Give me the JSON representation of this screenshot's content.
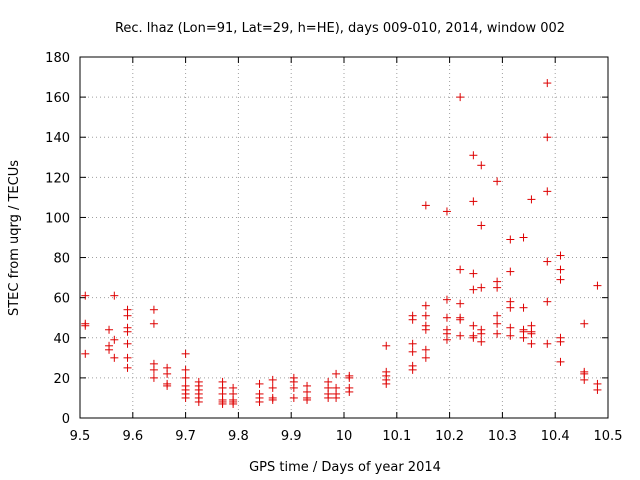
{
  "chart_data": {
    "type": "scatter",
    "title": "Rec. lhaz (Lon=91, Lat=29, h=HE), days 009-010, 2014, window 002",
    "xlabel": "GPS time / Days of year 2014",
    "ylabel": "STEC from uqrg / TECUs",
    "xlim": [
      9.5,
      10.5
    ],
    "ylim": [
      0,
      180
    ],
    "xticks": [
      "9.5",
      "9.6",
      "9.7",
      "9.8",
      "9.9",
      "10",
      "10.1",
      "10.2",
      "10.3",
      "10.4",
      "10.5"
    ],
    "yticks": [
      "0",
      "20",
      "40",
      "60",
      "80",
      "100",
      "120",
      "140",
      "160",
      "180"
    ],
    "grid": true,
    "marker": "+",
    "series": [
      {
        "color": "#dd0000",
        "points": [
          [
            9.51,
            61
          ],
          [
            9.51,
            47
          ],
          [
            9.51,
            46
          ],
          [
            9.51,
            32
          ],
          [
            9.555,
            44
          ],
          [
            9.555,
            36
          ],
          [
            9.555,
            34
          ],
          [
            9.565,
            61
          ],
          [
            9.565,
            39
          ],
          [
            9.565,
            30
          ],
          [
            9.59,
            54
          ],
          [
            9.59,
            51
          ],
          [
            9.59,
            45
          ],
          [
            9.59,
            43
          ],
          [
            9.59,
            37
          ],
          [
            9.59,
            30
          ],
          [
            9.59,
            25
          ],
          [
            9.64,
            54
          ],
          [
            9.64,
            47
          ],
          [
            9.64,
            27
          ],
          [
            9.64,
            24
          ],
          [
            9.64,
            20
          ],
          [
            9.665,
            25
          ],
          [
            9.665,
            22
          ],
          [
            9.665,
            17
          ],
          [
            9.665,
            16
          ],
          [
            9.7,
            32
          ],
          [
            9.7,
            24
          ],
          [
            9.7,
            20
          ],
          [
            9.7,
            16
          ],
          [
            9.7,
            14
          ],
          [
            9.7,
            12
          ],
          [
            9.7,
            10
          ],
          [
            9.725,
            18
          ],
          [
            9.725,
            16
          ],
          [
            9.725,
            14
          ],
          [
            9.725,
            12
          ],
          [
            9.725,
            10
          ],
          [
            9.725,
            8
          ],
          [
            9.77,
            18
          ],
          [
            9.77,
            15
          ],
          [
            9.77,
            12
          ],
          [
            9.77,
            9
          ],
          [
            9.77,
            8
          ],
          [
            9.77,
            7
          ],
          [
            9.79,
            15
          ],
          [
            9.79,
            12
          ],
          [
            9.79,
            9
          ],
          [
            9.79,
            8
          ],
          [
            9.79,
            7
          ],
          [
            9.84,
            17
          ],
          [
            9.84,
            12
          ],
          [
            9.84,
            10
          ],
          [
            9.84,
            8
          ],
          [
            9.865,
            19
          ],
          [
            9.865,
            15
          ],
          [
            9.865,
            10
          ],
          [
            9.865,
            9
          ],
          [
            9.905,
            20
          ],
          [
            9.905,
            18
          ],
          [
            9.905,
            15
          ],
          [
            9.905,
            10
          ],
          [
            9.93,
            16
          ],
          [
            9.93,
            13
          ],
          [
            9.93,
            10
          ],
          [
            9.93,
            9
          ],
          [
            9.97,
            18
          ],
          [
            9.97,
            15
          ],
          [
            9.97,
            12
          ],
          [
            9.97,
            10
          ],
          [
            9.985,
            22
          ],
          [
            9.985,
            15
          ],
          [
            9.985,
            12
          ],
          [
            9.985,
            10
          ],
          [
            10.01,
            21
          ],
          [
            10.01,
            20
          ],
          [
            10.01,
            15
          ],
          [
            10.01,
            13
          ],
          [
            10.08,
            36
          ],
          [
            10.08,
            23
          ],
          [
            10.08,
            21
          ],
          [
            10.08,
            19
          ],
          [
            10.08,
            17
          ],
          [
            10.13,
            51
          ],
          [
            10.13,
            49
          ],
          [
            10.13,
            37
          ],
          [
            10.13,
            33
          ],
          [
            10.13,
            26
          ],
          [
            10.13,
            24
          ],
          [
            10.155,
            106
          ],
          [
            10.155,
            56
          ],
          [
            10.155,
            51
          ],
          [
            10.155,
            46
          ],
          [
            10.155,
            44
          ],
          [
            10.155,
            34
          ],
          [
            10.155,
            30
          ],
          [
            10.195,
            103
          ],
          [
            10.195,
            59
          ],
          [
            10.195,
            50
          ],
          [
            10.195,
            44
          ],
          [
            10.195,
            42
          ],
          [
            10.195,
            39
          ],
          [
            10.22,
            160
          ],
          [
            10.22,
            74
          ],
          [
            10.22,
            57
          ],
          [
            10.22,
            50
          ],
          [
            10.22,
            49
          ],
          [
            10.22,
            41
          ],
          [
            10.245,
            131
          ],
          [
            10.245,
            108
          ],
          [
            10.245,
            72
          ],
          [
            10.245,
            64
          ],
          [
            10.245,
            46
          ],
          [
            10.245,
            41
          ],
          [
            10.245,
            40
          ],
          [
            10.26,
            126
          ],
          [
            10.26,
            96
          ],
          [
            10.26,
            65
          ],
          [
            10.26,
            44
          ],
          [
            10.26,
            42
          ],
          [
            10.26,
            38
          ],
          [
            10.29,
            118
          ],
          [
            10.29,
            68
          ],
          [
            10.29,
            65
          ],
          [
            10.29,
            51
          ],
          [
            10.29,
            47
          ],
          [
            10.29,
            42
          ],
          [
            10.315,
            89
          ],
          [
            10.315,
            73
          ],
          [
            10.315,
            58
          ],
          [
            10.315,
            55
          ],
          [
            10.315,
            45
          ],
          [
            10.315,
            41
          ],
          [
            10.34,
            90
          ],
          [
            10.34,
            55
          ],
          [
            10.34,
            44
          ],
          [
            10.34,
            43
          ],
          [
            10.34,
            40
          ],
          [
            10.355,
            109
          ],
          [
            10.355,
            46
          ],
          [
            10.355,
            43
          ],
          [
            10.355,
            42
          ],
          [
            10.355,
            37
          ],
          [
            10.385,
            167
          ],
          [
            10.385,
            140
          ],
          [
            10.385,
            113
          ],
          [
            10.385,
            78
          ],
          [
            10.385,
            58
          ],
          [
            10.385,
            37
          ],
          [
            10.41,
            81
          ],
          [
            10.41,
            74
          ],
          [
            10.41,
            69
          ],
          [
            10.41,
            40
          ],
          [
            10.41,
            38
          ],
          [
            10.41,
            28
          ],
          [
            10.455,
            47
          ],
          [
            10.455,
            23
          ],
          [
            10.455,
            22
          ],
          [
            10.455,
            19
          ],
          [
            10.48,
            66
          ],
          [
            10.48,
            17
          ],
          [
            10.48,
            14
          ]
        ]
      }
    ]
  }
}
